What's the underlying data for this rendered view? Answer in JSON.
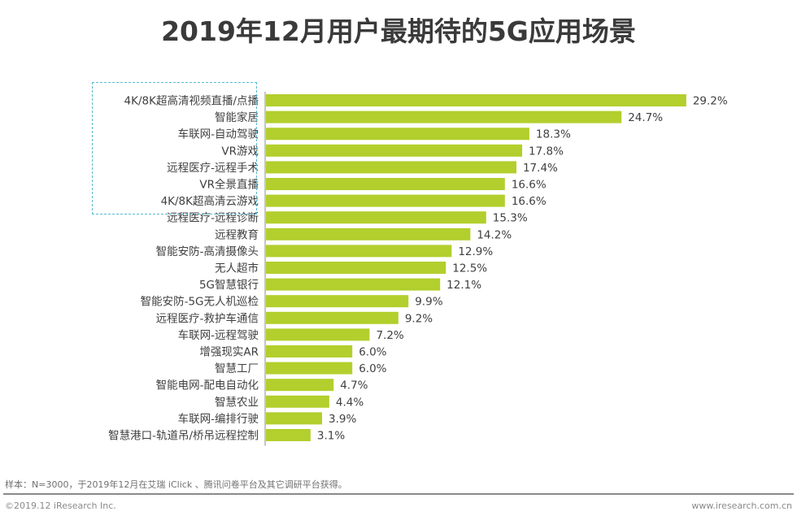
{
  "chart_data": {
    "type": "bar",
    "orientation": "horizontal",
    "title": "2019年12月用户最期待的5G应用场景",
    "xlabel": "",
    "ylabel": "",
    "unit": "%",
    "xlim": [
      0,
      30
    ],
    "grid": false,
    "bar_color": "#b2cf2d",
    "highlight_color": "#5bb8d0",
    "highlighted_categories_count": 7,
    "categories": [
      "4K/8K超高清视频直播/点播",
      "智能家居",
      "车联网-自动驾驶",
      "VR游戏",
      "远程医疗-远程手术",
      "VR全景直播",
      "4K/8K超高清云游戏",
      "远程医疗-远程诊断",
      "远程教育",
      "智能安防-高清摄像头",
      "无人超市",
      "5G智慧银行",
      "智能安防-5G无人机巡检",
      "远程医疗-救护车通信",
      "车联网-远程驾驶",
      "增强现实AR",
      "智慧工厂",
      "智能电网-配电自动化",
      "智慧农业",
      "车联网-编排行驶",
      "智慧港口-轨道吊/桥吊远程控制"
    ],
    "values": [
      29.2,
      24.7,
      18.3,
      17.8,
      17.4,
      16.6,
      16.6,
      15.3,
      14.2,
      12.9,
      12.5,
      12.1,
      9.9,
      9.2,
      7.2,
      6.0,
      6.0,
      4.7,
      4.4,
      3.9,
      3.1
    ],
    "value_labels": [
      "29.2%",
      "24.7%",
      "18.3%",
      "17.8%",
      "17.4%",
      "16.6%",
      "16.6%",
      "15.3%",
      "14.2%",
      "12.9%",
      "12.5%",
      "12.1%",
      "9.9%",
      "9.2%",
      "7.2%",
      "6.0%",
      "6.0%",
      "4.7%",
      "4.4%",
      "3.9%",
      "3.1%"
    ]
  },
  "footer": {
    "note": "样本：N=3000，于2019年12月在艾瑞 iClick 、腾讯问卷平台及其它调研平台获得。",
    "copyright": "©2019.12 iResearch Inc.",
    "website": "www.iresearch.com.cn"
  }
}
